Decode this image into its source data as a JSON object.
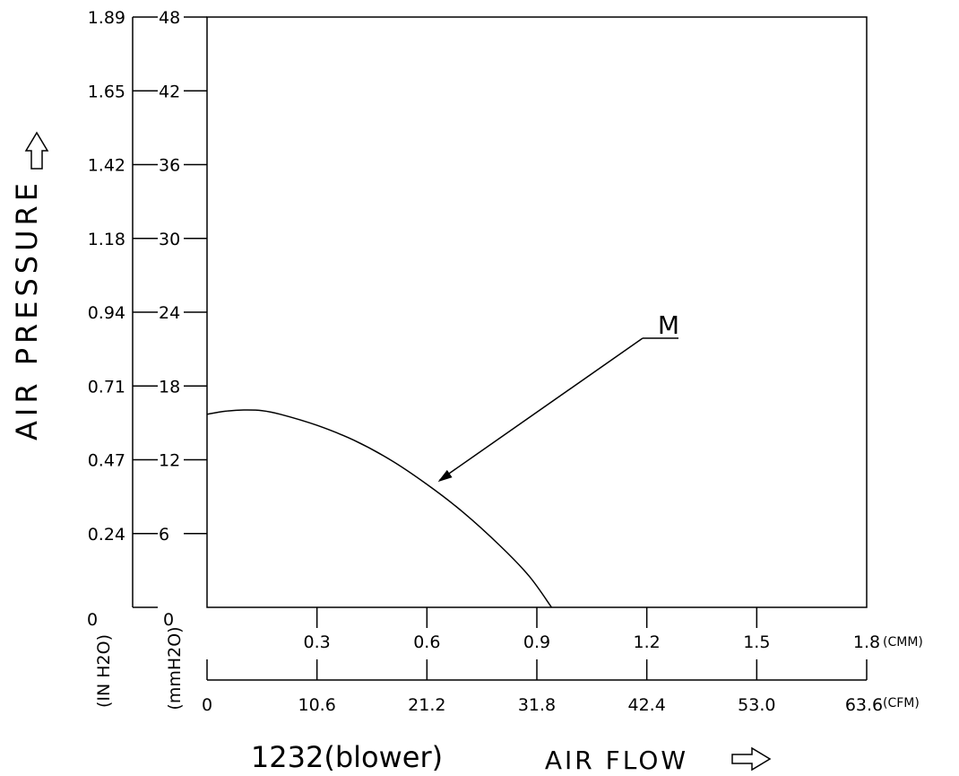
{
  "chart_data": {
    "type": "line",
    "title": "1232(blower)",
    "xlabel": "AIR FLOW",
    "ylabel": "AIR PRESSURE",
    "grid": false,
    "x_axes": [
      {
        "unit": "(CMM)",
        "ticks": [
          "0.3",
          "0.6",
          "0.9",
          "1.2",
          "1.5",
          "1.8"
        ],
        "range": [
          0,
          1.8
        ]
      },
      {
        "unit": "(CFM)",
        "ticks": [
          "0",
          "10.6",
          "21.2",
          "31.8",
          "42.4",
          "53.0",
          "63.6"
        ],
        "range": [
          0,
          63.6
        ]
      }
    ],
    "y_axes": [
      {
        "unit": "(IN H2O)",
        "ticks": [
          "0",
          "0.24",
          "0.47",
          "0.71",
          "0.94",
          "1.18",
          "1.42",
          "1.65",
          "1.89"
        ],
        "range": [
          0,
          1.89
        ]
      },
      {
        "unit": "(mmH2O)",
        "ticks": [
          "0",
          "6",
          "12",
          "18",
          "24",
          "30",
          "36",
          "42",
          "48"
        ],
        "range": [
          0,
          48
        ]
      }
    ],
    "series": [
      {
        "name": "M",
        "x_unit": "CMM",
        "y_unit": "mmH2O",
        "points": [
          [
            0,
            15.7
          ],
          [
            0.05,
            15.95
          ],
          [
            0.1,
            16.05
          ],
          [
            0.15,
            16.0
          ],
          [
            0.2,
            15.7
          ],
          [
            0.3,
            14.8
          ],
          [
            0.4,
            13.6
          ],
          [
            0.5,
            12.0
          ],
          [
            0.6,
            10.0
          ],
          [
            0.7,
            7.7
          ],
          [
            0.8,
            5.0
          ],
          [
            0.88,
            2.5
          ],
          [
            0.94,
            0
          ]
        ]
      }
    ],
    "annotations": [
      {
        "text": "M",
        "target_series": "M"
      }
    ]
  }
}
